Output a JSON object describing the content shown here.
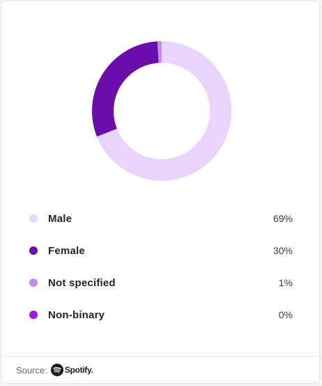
{
  "chart_data": {
    "type": "pie",
    "style": "donut",
    "categories": [
      "Male",
      "Female",
      "Not specified",
      "Non-binary"
    ],
    "values": [
      69,
      30,
      1,
      0
    ],
    "value_labels": [
      "69%",
      "30%",
      "1%",
      "0%"
    ],
    "colors": [
      "#e9d5fc",
      "#6a0dab",
      "#c88af0",
      "#9b19ec"
    ],
    "legend_placement": "bottom"
  },
  "legend": {
    "items": [
      {
        "label": "Male",
        "value": "69%",
        "color": "#e9d5fc"
      },
      {
        "label": "Female",
        "value": "30%",
        "color": "#6a0dab"
      },
      {
        "label": "Not specified",
        "value": "1%",
        "color": "#c88af0"
      },
      {
        "label": "Non-binary",
        "value": "0%",
        "color": "#9b19ec"
      }
    ]
  },
  "footer": {
    "source_label": "Source:",
    "brand": "Spotify.",
    "logo_icon": "spotify-logo-icon"
  }
}
